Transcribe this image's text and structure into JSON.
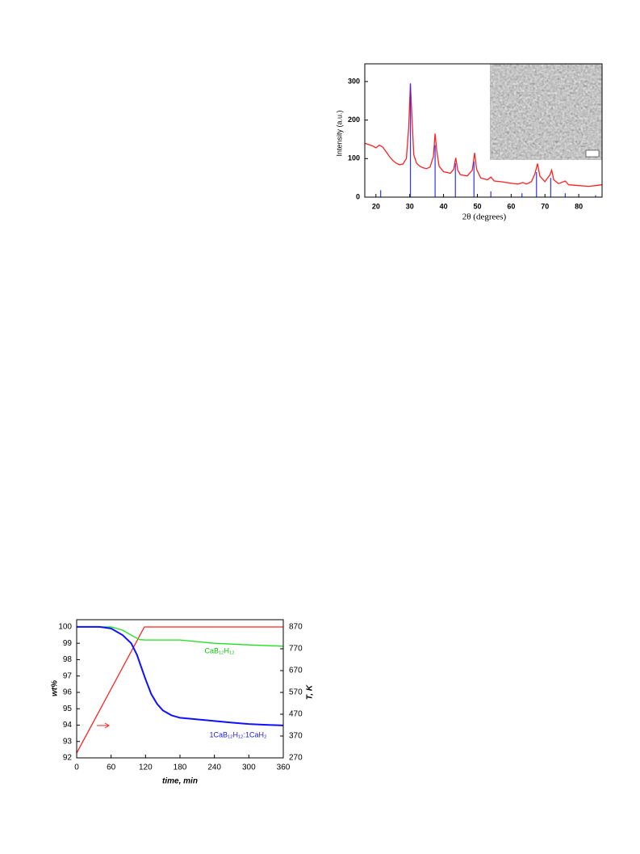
{
  "chart_data": [
    {
      "type": "line",
      "xlabel": "2θ (degrees)",
      "ylabel": "Intensity (a.u.)",
      "xlim": [
        16.7,
        86.9
      ],
      "ylim": [
        0,
        346
      ],
      "xticks": [
        20,
        30,
        40,
        50,
        60,
        70,
        80
      ],
      "yticks": [
        0,
        100,
        200,
        300
      ],
      "series": [
        {
          "mode": "line",
          "color": "#ff2020",
          "x": [
            16.7,
            19,
            20,
            21,
            22,
            23,
            24,
            25,
            26,
            27,
            28,
            29,
            29.7,
            30.2,
            30.7,
            31.2,
            32,
            33,
            34,
            35,
            36,
            37,
            37.5,
            38,
            38.7,
            40,
            42,
            43,
            43.6,
            44.2,
            45,
            47,
            48.5,
            49.2,
            49.8,
            51,
            53,
            54,
            55,
            57,
            60,
            62,
            63.5,
            64.5,
            66,
            67,
            67.8,
            68.5,
            70,
            71.5,
            72,
            72.6,
            74,
            76,
            77,
            80,
            83,
            85,
            86.9
          ],
          "values": [
            140,
            133,
            128,
            135,
            130,
            118,
            105,
            95,
            88,
            84,
            86,
            100,
            180,
            295,
            200,
            110,
            88,
            80,
            76,
            74,
            78,
            105,
            165,
            120,
            80,
            66,
            62,
            72,
            102,
            70,
            58,
            55,
            70,
            115,
            72,
            50,
            45,
            52,
            42,
            40,
            36,
            34,
            38,
            34,
            40,
            60,
            87,
            55,
            40,
            58,
            70,
            45,
            35,
            42,
            32,
            30,
            28,
            30,
            32
          ]
        },
        {
          "mode": "stick",
          "color": "#3030ff",
          "x": [
            21.4,
            30.2,
            37.5,
            43.5,
            49,
            54,
            63.2,
            67.5,
            71.7,
            76,
            85
          ],
          "values": [
            18,
            295,
            135,
            88,
            92,
            15,
            10,
            65,
            50,
            10,
            5
          ]
        }
      ]
    },
    {
      "type": "line",
      "xlabel": "time, min",
      "ylabel": "wt%",
      "y2label": "T, K",
      "xlim": [
        0,
        360
      ],
      "ylim": [
        92,
        100.44
      ],
      "y2lim": [
        270,
        903.3
      ],
      "xticks": [
        0,
        60,
        120,
        180,
        240,
        300,
        360
      ],
      "yticks": [
        92,
        93,
        94,
        95,
        96,
        97,
        98,
        99,
        100
      ],
      "y2ticks": [
        270,
        370,
        470,
        570,
        670,
        770,
        870
      ],
      "annotations": [
        {
          "text": "CaB₁₂H₁₂",
          "color": "#10c010"
        },
        {
          "text": "1CaB₁₂H₁₂:1CaH₂",
          "color": "#2020e0"
        }
      ],
      "series": [
        {
          "mode": "line",
          "color": "#ff2020",
          "axis": "y2",
          "x": [
            0,
            118,
            360
          ],
          "values": [
            292,
            870,
            870
          ]
        },
        {
          "mode": "line",
          "color": "#20e020",
          "x": [
            0,
            60,
            80,
            100,
            110,
            120,
            180,
            240,
            300,
            360
          ],
          "values": [
            100,
            100,
            99.8,
            99.4,
            99.22,
            99.2,
            99.2,
            99.0,
            98.9,
            98.82
          ]
        },
        {
          "mode": "line",
          "color": "#1010ff",
          "x": [
            0,
            40,
            60,
            80,
            95,
            105,
            112,
            120,
            130,
            140,
            150,
            165,
            180,
            210,
            240,
            270,
            300,
            330,
            360
          ],
          "values": [
            100,
            100,
            99.9,
            99.5,
            99.0,
            98.3,
            97.6,
            96.8,
            95.9,
            95.3,
            94.9,
            94.6,
            94.45,
            94.35,
            94.25,
            94.15,
            94.07,
            94.02,
            93.98
          ]
        }
      ]
    }
  ]
}
